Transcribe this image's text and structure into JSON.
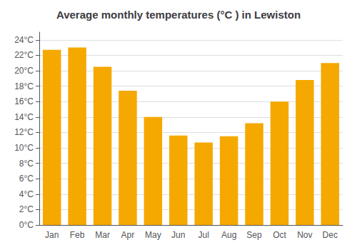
{
  "chart_data": {
    "type": "bar",
    "title": "Average monthly temperatures (°C ) in Lewiston",
    "categories": [
      "Jan",
      "Feb",
      "Mar",
      "Apr",
      "May",
      "Jun",
      "Jul",
      "Aug",
      "Sep",
      "Oct",
      "Nov",
      "Dec"
    ],
    "values": [
      22.7,
      23.0,
      20.5,
      17.4,
      14.0,
      11.6,
      10.7,
      11.5,
      13.2,
      16.0,
      18.8,
      21.0
    ],
    "color": "#F5A800",
    "ylim": [
      0,
      25
    ],
    "yticks": [
      {
        "value": 0,
        "label": "0°C"
      },
      {
        "value": 2,
        "label": "2°C"
      },
      {
        "value": 4,
        "label": "4°C"
      },
      {
        "value": 6,
        "label": "6°C"
      },
      {
        "value": 8,
        "label": "8°C"
      },
      {
        "value": 10,
        "label": "10°C"
      },
      {
        "value": 12,
        "label": "12°C"
      },
      {
        "value": 14,
        "label": "14°C"
      },
      {
        "value": 16,
        "label": "16°C"
      },
      {
        "value": 18,
        "label": "18°C"
      },
      {
        "value": 20,
        "label": "20°C"
      },
      {
        "value": 22,
        "label": "22°C"
      },
      {
        "value": 24,
        "label": "24°C"
      }
    ],
    "grid": true
  }
}
